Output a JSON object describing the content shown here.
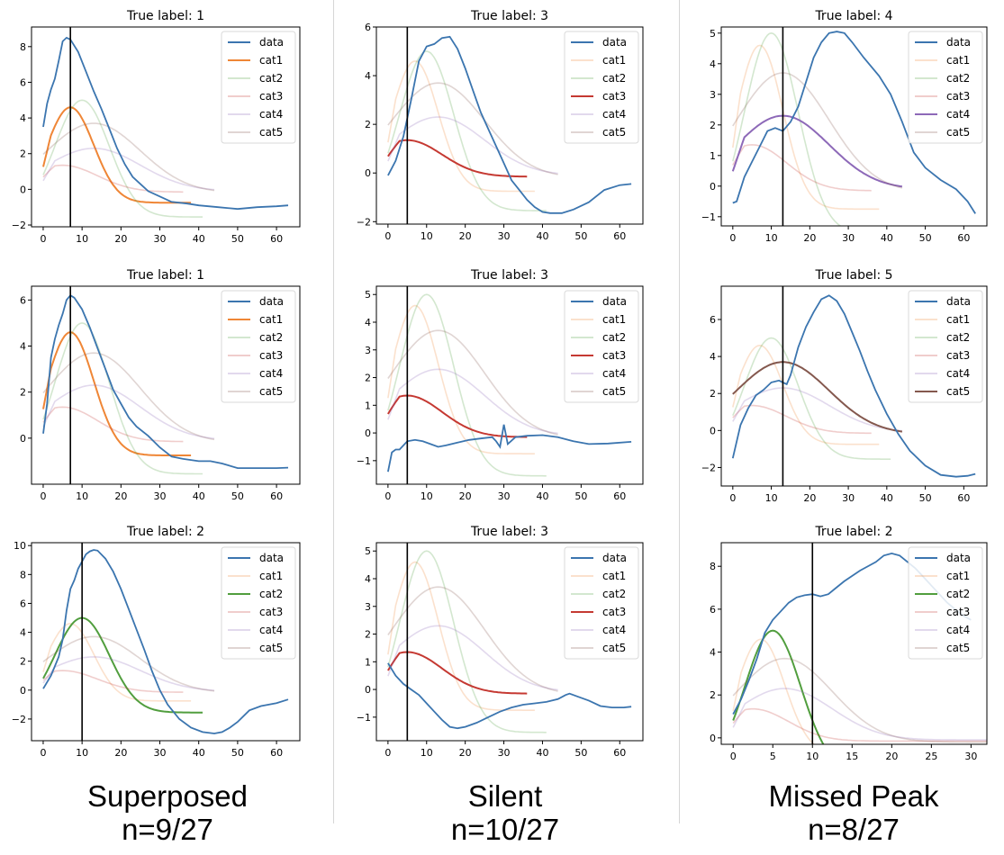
{
  "columns": [
    {
      "title": "Superposed",
      "count": "n=9/27"
    },
    {
      "title": "Silent",
      "count": "n=10/27"
    },
    {
      "title": "Missed Peak",
      "count": "n=8/27"
    }
  ],
  "legend_labels": [
    "data",
    "cat1",
    "cat2",
    "cat3",
    "cat4",
    "cat5"
  ],
  "colors": {
    "data": "#3b75af",
    "cat1": "#ef8636",
    "cat2": "#519e3e",
    "cat3": "#c53932",
    "cat4": "#8d69b8",
    "cat5": "#84584e"
  },
  "chart_data": [
    {
      "type": "line",
      "title": "True label: 1",
      "highlight": "cat1",
      "marker_x": 7,
      "xlim": [
        -3,
        66
      ],
      "ylim": [
        -2.1,
        9.1
      ],
      "xticks": [
        0,
        10,
        20,
        30,
        40,
        50,
        60
      ],
      "yticks": [
        -2,
        0,
        2,
        4,
        6,
        8
      ],
      "data": [
        [
          0,
          3.5
        ],
        [
          1,
          4.8
        ],
        [
          2,
          5.6
        ],
        [
          3,
          6.2
        ],
        [
          4,
          7.2
        ],
        [
          5,
          8.3
        ],
        [
          6,
          8.5
        ],
        [
          7,
          8.4
        ],
        [
          9,
          7.7
        ],
        [
          11,
          6.6
        ],
        [
          13,
          5.5
        ],
        [
          15,
          4.5
        ],
        [
          17,
          3.4
        ],
        [
          19,
          2.3
        ],
        [
          21,
          1.4
        ],
        [
          23,
          0.7
        ],
        [
          25,
          0.3
        ],
        [
          27,
          -0.1
        ],
        [
          30,
          -0.4
        ],
        [
          33,
          -0.7
        ],
        [
          37,
          -0.8
        ],
        [
          40,
          -0.9
        ],
        [
          45,
          -1.0
        ],
        [
          50,
          -1.1
        ],
        [
          55,
          -1.0
        ],
        [
          60,
          -0.95
        ],
        [
          63,
          -0.9
        ]
      ]
    },
    {
      "type": "line",
      "title": "True label: 3",
      "highlight": "cat3",
      "marker_x": 5,
      "xlim": [
        -3,
        66
      ],
      "ylim": [
        -2.1,
        6.0
      ],
      "xticks": [
        0,
        10,
        20,
        30,
        40,
        50,
        60
      ],
      "yticks": [
        -2,
        0,
        2,
        4,
        6
      ],
      "data": [
        [
          0,
          -0.1
        ],
        [
          2,
          0.5
        ],
        [
          4,
          1.5
        ],
        [
          6,
          3.0
        ],
        [
          8,
          4.6
        ],
        [
          10,
          5.2
        ],
        [
          12,
          5.3
        ],
        [
          14,
          5.55
        ],
        [
          16,
          5.6
        ],
        [
          18,
          5.1
        ],
        [
          20,
          4.3
        ],
        [
          22,
          3.4
        ],
        [
          24,
          2.5
        ],
        [
          26,
          1.8
        ],
        [
          28,
          1.1
        ],
        [
          30,
          0.4
        ],
        [
          32,
          -0.3
        ],
        [
          34,
          -0.7
        ],
        [
          36,
          -1.1
        ],
        [
          38,
          -1.4
        ],
        [
          40,
          -1.6
        ],
        [
          42,
          -1.65
        ],
        [
          45,
          -1.65
        ],
        [
          48,
          -1.5
        ],
        [
          52,
          -1.2
        ],
        [
          56,
          -0.7
        ],
        [
          60,
          -0.5
        ],
        [
          63,
          -0.45
        ]
      ]
    },
    {
      "type": "line",
      "title": "True label: 4",
      "highlight": "cat4",
      "marker_x": 13,
      "xlim": [
        -3,
        66
      ],
      "ylim": [
        -1.3,
        5.2
      ],
      "xticks": [
        0,
        10,
        20,
        30,
        40,
        50,
        60
      ],
      "yticks": [
        -1,
        0,
        1,
        2,
        3,
        4,
        5
      ],
      "data": [
        [
          0,
          -0.55
        ],
        [
          1,
          -0.5
        ],
        [
          3,
          0.3
        ],
        [
          5,
          0.8
        ],
        [
          7,
          1.3
        ],
        [
          9,
          1.8
        ],
        [
          11,
          1.9
        ],
        [
          13,
          1.8
        ],
        [
          15,
          2.1
        ],
        [
          17,
          2.6
        ],
        [
          19,
          3.4
        ],
        [
          21,
          4.2
        ],
        [
          23,
          4.7
        ],
        [
          25,
          5.0
        ],
        [
          27,
          5.05
        ],
        [
          29,
          5.0
        ],
        [
          31,
          4.7
        ],
        [
          34,
          4.2
        ],
        [
          38,
          3.6
        ],
        [
          41,
          3.0
        ],
        [
          44,
          2.1
        ],
        [
          47,
          1.1
        ],
        [
          50,
          0.6
        ],
        [
          54,
          0.2
        ],
        [
          58,
          -0.1
        ],
        [
          61,
          -0.5
        ],
        [
          63,
          -0.9
        ]
      ]
    },
    {
      "type": "line",
      "title": "True label: 1",
      "highlight": "cat1",
      "marker_x": 7,
      "xlim": [
        -3,
        66
      ],
      "ylim": [
        -2.0,
        6.6
      ],
      "xticks": [
        0,
        10,
        20,
        30,
        40,
        50,
        60
      ],
      "yticks": [
        0,
        2,
        4,
        6
      ],
      "data": [
        [
          0,
          0.2
        ],
        [
          1,
          1.5
        ],
        [
          2,
          3.5
        ],
        [
          3,
          4.3
        ],
        [
          4,
          4.9
        ],
        [
          5,
          5.4
        ],
        [
          6,
          6.0
        ],
        [
          7,
          6.2
        ],
        [
          8,
          6.1
        ],
        [
          10,
          5.6
        ],
        [
          12,
          4.8
        ],
        [
          14,
          3.9
        ],
        [
          16,
          3.0
        ],
        [
          18,
          2.1
        ],
        [
          20,
          1.5
        ],
        [
          22,
          0.9
        ],
        [
          24,
          0.5
        ],
        [
          27,
          0.1
        ],
        [
          30,
          -0.4
        ],
        [
          33,
          -0.8
        ],
        [
          36,
          -0.9
        ],
        [
          40,
          -1.0
        ],
        [
          43,
          -1.0
        ],
        [
          46,
          -1.1
        ],
        [
          50,
          -1.3
        ],
        [
          55,
          -1.3
        ],
        [
          60,
          -1.3
        ],
        [
          63,
          -1.28
        ]
      ]
    },
    {
      "type": "line",
      "title": "True label: 3",
      "highlight": "cat3",
      "marker_x": 5,
      "xlim": [
        -3,
        66
      ],
      "ylim": [
        -1.85,
        5.3
      ],
      "xticks": [
        0,
        10,
        20,
        30,
        40,
        50,
        60
      ],
      "yticks": [
        -1,
        0,
        1,
        2,
        3,
        4,
        5
      ],
      "data": [
        [
          0,
          -1.4
        ],
        [
          1,
          -0.7
        ],
        [
          2,
          -0.6
        ],
        [
          3,
          -0.6
        ],
        [
          5,
          -0.3
        ],
        [
          7,
          -0.25
        ],
        [
          9,
          -0.3
        ],
        [
          11,
          -0.4
        ],
        [
          13,
          -0.5
        ],
        [
          15,
          -0.45
        ],
        [
          18,
          -0.35
        ],
        [
          21,
          -0.25
        ],
        [
          24,
          -0.2
        ],
        [
          27,
          -0.15
        ],
        [
          28,
          -0.3
        ],
        [
          29,
          -0.5
        ],
        [
          30,
          0.3
        ],
        [
          31,
          -0.4
        ],
        [
          33,
          -0.15
        ],
        [
          36,
          -0.1
        ],
        [
          40,
          -0.08
        ],
        [
          44,
          -0.15
        ],
        [
          48,
          -0.3
        ],
        [
          52,
          -0.4
        ],
        [
          57,
          -0.38
        ],
        [
          63,
          -0.32
        ]
      ]
    },
    {
      "type": "line",
      "title": "True label: 5",
      "highlight": "cat5",
      "marker_x": 13,
      "xlim": [
        -3,
        66
      ],
      "ylim": [
        -3.0,
        7.8
      ],
      "xticks": [
        0,
        10,
        20,
        30,
        40,
        50,
        60
      ],
      "yticks": [
        -2,
        0,
        2,
        4,
        6
      ],
      "data": [
        [
          0,
          -1.5
        ],
        [
          1,
          -0.6
        ],
        [
          2,
          0.3
        ],
        [
          4,
          1.2
        ],
        [
          6,
          1.9
        ],
        [
          8,
          2.2
        ],
        [
          10,
          2.6
        ],
        [
          12,
          2.7
        ],
        [
          13,
          2.6
        ],
        [
          14,
          2.5
        ],
        [
          15,
          3.0
        ],
        [
          17,
          4.5
        ],
        [
          19,
          5.6
        ],
        [
          21,
          6.4
        ],
        [
          23,
          7.1
        ],
        [
          25,
          7.3
        ],
        [
          27,
          7.0
        ],
        [
          29,
          6.3
        ],
        [
          31,
          5.3
        ],
        [
          33,
          4.3
        ],
        [
          35,
          3.2
        ],
        [
          37,
          2.2
        ],
        [
          40,
          0.9
        ],
        [
          43,
          -0.2
        ],
        [
          46,
          -1.1
        ],
        [
          50,
          -1.9
        ],
        [
          54,
          -2.4
        ],
        [
          58,
          -2.5
        ],
        [
          61,
          -2.45
        ],
        [
          63,
          -2.35
        ]
      ]
    },
    {
      "type": "line",
      "title": "True label: 2",
      "highlight": "cat2",
      "marker_x": 10,
      "xlim": [
        -3,
        66
      ],
      "ylim": [
        -3.5,
        10.2
      ],
      "xticks": [
        0,
        10,
        20,
        30,
        40,
        50,
        60
      ],
      "yticks": [
        -2,
        0,
        2,
        4,
        6,
        8,
        10
      ],
      "data": [
        [
          0,
          0.1
        ],
        [
          2,
          1.0
        ],
        [
          4,
          2.3
        ],
        [
          5,
          3.5
        ],
        [
          6,
          5.5
        ],
        [
          7,
          7.0
        ],
        [
          8,
          7.6
        ],
        [
          9,
          8.4
        ],
        [
          10,
          8.9
        ],
        [
          11,
          9.4
        ],
        [
          12,
          9.6
        ],
        [
          13,
          9.7
        ],
        [
          14,
          9.65
        ],
        [
          16,
          9.1
        ],
        [
          18,
          8.2
        ],
        [
          20,
          7.0
        ],
        [
          22,
          5.6
        ],
        [
          24,
          4.2
        ],
        [
          26,
          2.8
        ],
        [
          28,
          1.3
        ],
        [
          30,
          0.0
        ],
        [
          32,
          -1.0
        ],
        [
          35,
          -2.0
        ],
        [
          38,
          -2.6
        ],
        [
          41,
          -2.9
        ],
        [
          44,
          -3.0
        ],
        [
          46,
          -2.9
        ],
        [
          48,
          -2.6
        ],
        [
          50,
          -2.2
        ],
        [
          53,
          -1.4
        ],
        [
          56,
          -1.1
        ],
        [
          60,
          -0.9
        ],
        [
          63,
          -0.65
        ]
      ]
    },
    {
      "type": "line",
      "title": "True label: 3",
      "highlight": "cat3",
      "marker_x": 5,
      "xlim": [
        -3,
        66
      ],
      "ylim": [
        -1.85,
        5.3
      ],
      "xticks": [
        0,
        10,
        20,
        30,
        40,
        50,
        60
      ],
      "yticks": [
        -1,
        0,
        1,
        2,
        3,
        4,
        5
      ],
      "data": [
        [
          0,
          0.95
        ],
        [
          2,
          0.5
        ],
        [
          4,
          0.2
        ],
        [
          6,
          0.0
        ],
        [
          8,
          -0.2
        ],
        [
          10,
          -0.5
        ],
        [
          12,
          -0.8
        ],
        [
          14,
          -1.1
        ],
        [
          16,
          -1.35
        ],
        [
          18,
          -1.4
        ],
        [
          20,
          -1.35
        ],
        [
          23,
          -1.2
        ],
        [
          26,
          -1.0
        ],
        [
          29,
          -0.8
        ],
        [
          32,
          -0.65
        ],
        [
          35,
          -0.55
        ],
        [
          38,
          -0.5
        ],
        [
          41,
          -0.45
        ],
        [
          44,
          -0.35
        ],
        [
          46,
          -0.2
        ],
        [
          47,
          -0.15
        ],
        [
          49,
          -0.25
        ],
        [
          52,
          -0.4
        ],
        [
          55,
          -0.6
        ],
        [
          58,
          -0.65
        ],
        [
          61,
          -0.65
        ],
        [
          63,
          -0.62
        ]
      ]
    },
    {
      "type": "line",
      "title": "True label: 2",
      "highlight": "cat2",
      "marker_x": 10,
      "xlim": [
        -1.5,
        32
      ],
      "ylim": [
        -0.3,
        9.1
      ],
      "xticks": [
        0,
        5,
        10,
        15,
        20,
        25,
        30
      ],
      "yticks": [
        0,
        2,
        4,
        6,
        8
      ],
      "data": [
        [
          0,
          1.1
        ],
        [
          1,
          1.8
        ],
        [
          2,
          2.7
        ],
        [
          3,
          3.7
        ],
        [
          4,
          4.9
        ],
        [
          5,
          5.5
        ],
        [
          6,
          5.9
        ],
        [
          7,
          6.3
        ],
        [
          8,
          6.55
        ],
        [
          9,
          6.65
        ],
        [
          10,
          6.7
        ],
        [
          11,
          6.6
        ],
        [
          12,
          6.7
        ],
        [
          13,
          7.0
        ],
        [
          14,
          7.3
        ],
        [
          16,
          7.8
        ],
        [
          18,
          8.2
        ],
        [
          19,
          8.5
        ],
        [
          20,
          8.6
        ],
        [
          21,
          8.5
        ],
        [
          22,
          8.2
        ],
        [
          23,
          7.9
        ],
        [
          24,
          7.5
        ],
        [
          25,
          7.1
        ],
        [
          26,
          6.7
        ],
        [
          27,
          6.3
        ],
        [
          28,
          6.0
        ],
        [
          29,
          5.7
        ],
        [
          30,
          5.5
        ]
      ]
    }
  ]
}
